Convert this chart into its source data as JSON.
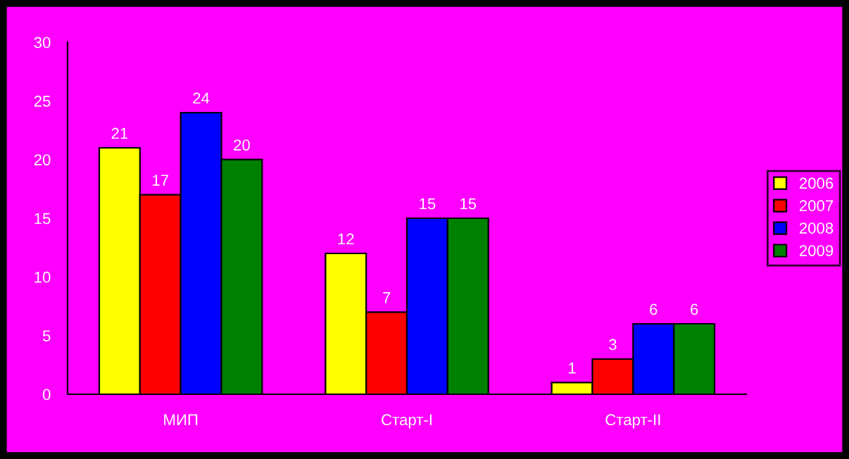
{
  "chart_data": {
    "type": "bar",
    "categories": [
      "МИП",
      "Старт-I",
      "Старт-II"
    ],
    "series": [
      {
        "name": "2006",
        "color": "#ffff00",
        "values": [
          21,
          12,
          1
        ]
      },
      {
        "name": "2007",
        "color": "#ff0000",
        "values": [
          17,
          7,
          3
        ]
      },
      {
        "name": "2008",
        "color": "#0000ff",
        "values": [
          24,
          15,
          6
        ]
      },
      {
        "name": "2009",
        "color": "#008000",
        "values": [
          20,
          15,
          6
        ]
      }
    ],
    "ylim": [
      0,
      30
    ],
    "yticks": [
      0,
      5,
      10,
      15,
      20,
      25,
      30
    ],
    "data_labels": true,
    "legend": "right",
    "grid": false
  }
}
